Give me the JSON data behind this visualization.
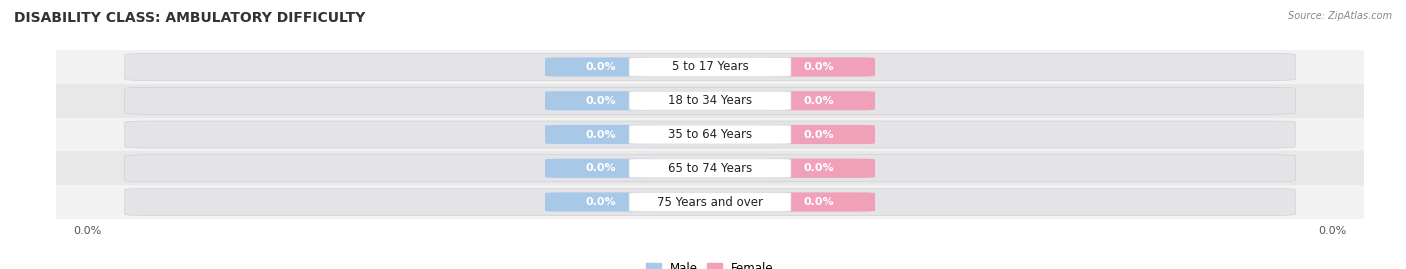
{
  "title": "DISABILITY CLASS: AMBULATORY DIFFICULTY",
  "source": "Source: ZipAtlas.com",
  "categories": [
    "5 to 17 Years",
    "18 to 34 Years",
    "35 to 64 Years",
    "65 to 74 Years",
    "75 Years and over"
  ],
  "male_values": [
    0.0,
    0.0,
    0.0,
    0.0,
    0.0
  ],
  "female_values": [
    0.0,
    0.0,
    0.0,
    0.0,
    0.0
  ],
  "male_color": "#a8c8e8",
  "female_color": "#f0a0b8",
  "row_bg_light": "#f2f2f2",
  "row_bg_dark": "#e8e8e8",
  "bar_bg_color": "#e4e4e8",
  "value_pill_color_male": "#a8c8e8",
  "value_pill_color_female": "#f0a0b8",
  "title_fontsize": 10,
  "label_fontsize": 8.5,
  "tick_fontsize": 8,
  "background_color": "#ffffff"
}
